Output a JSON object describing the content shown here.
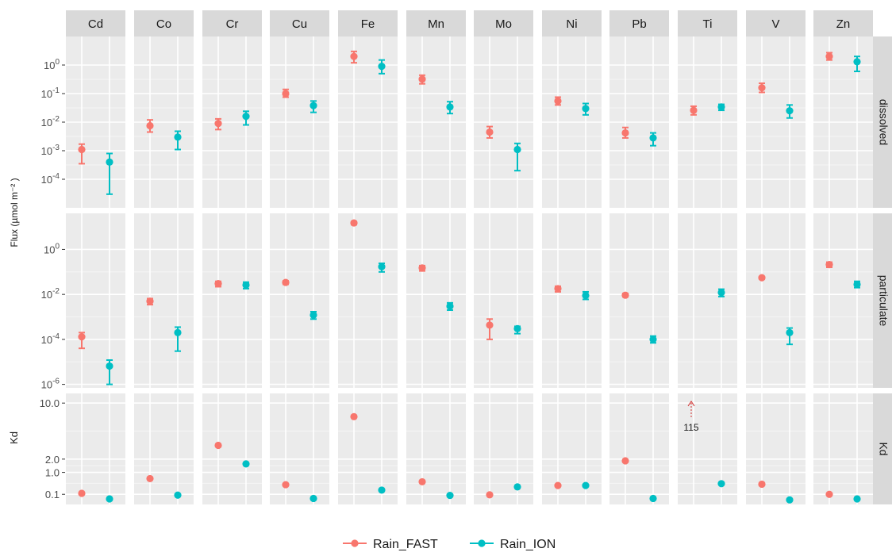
{
  "chart_data": {
    "type": "scatter",
    "xlabel": "",
    "ylabel_flux": "Flux (µmol m⁻² )",
    "ylabel_kd": "Kd",
    "elements": [
      "Cd",
      "Co",
      "Cr",
      "Cu",
      "Fe",
      "Mn",
      "Mo",
      "Ni",
      "Pb",
      "Ti",
      "V",
      "Zn"
    ],
    "legend": {
      "position": "bottom",
      "entries": [
        {
          "name": "Rain_FAST",
          "color": "#F8766D"
        },
        {
          "name": "Rain_ION",
          "color": "#00BFC4"
        }
      ]
    },
    "annotation": {
      "element": "Ti",
      "panel": "Kd",
      "text": "115",
      "color": "#d0302f"
    },
    "panels": [
      {
        "name": "dissolved",
        "scale": "log",
        "ylim": [
          1e-05,
          10
        ],
        "y_ticks": [
          {
            "v": 1,
            "base": "10",
            "exp": "0"
          },
          {
            "v": 0.1,
            "base": "10",
            "exp": "-1"
          },
          {
            "v": 0.01,
            "base": "10",
            "exp": "-2"
          },
          {
            "v": 0.001,
            "base": "10",
            "exp": "-3"
          },
          {
            "v": 0.0001,
            "base": "10",
            "exp": "-4"
          }
        ],
        "series": [
          {
            "name": "Rain_FAST",
            "values": [
              0.0011,
              0.0075,
              0.009,
              0.1,
              2.0,
              0.32,
              0.0045,
              0.055,
              0.0042,
              0.026,
              0.16,
              2.0
            ],
            "low": [
              0.00035,
              0.0045,
              0.0055,
              0.075,
              1.2,
              0.22,
              0.0028,
              0.04,
              0.0028,
              0.018,
              0.11,
              1.5
            ],
            "high": [
              0.0017,
              0.012,
              0.013,
              0.14,
              3.0,
              0.44,
              0.007,
              0.075,
              0.0065,
              0.036,
              0.23,
              2.7
            ]
          },
          {
            "name": "Rain_ION",
            "values": [
              0.0004,
              0.003,
              0.016,
              0.038,
              0.9,
              0.034,
              0.0011,
              0.03,
              0.0028,
              0.034,
              0.025,
              1.3
            ],
            "low": [
              3e-05,
              0.0011,
              0.008,
              0.022,
              0.5,
              0.02,
              0.0002,
              0.018,
              0.0015,
              0.026,
              0.014,
              0.6
            ],
            "high": [
              0.0008,
              0.0048,
              0.024,
              0.055,
              1.5,
              0.052,
              0.0018,
              0.045,
              0.0042,
              0.042,
              0.04,
              2.0
            ]
          }
        ]
      },
      {
        "name": "particulate",
        "scale": "log",
        "ylim": [
          7e-07,
          40
        ],
        "y_ticks": [
          {
            "v": 1,
            "base": "10",
            "exp": "0"
          },
          {
            "v": 0.01,
            "base": "10",
            "exp": "-2"
          },
          {
            "v": 0.0001,
            "base": "10",
            "exp": "-4"
          },
          {
            "v": 1e-06,
            "base": "10",
            "exp": "-6"
          }
        ],
        "series": [
          {
            "name": "Rain_FAST",
            "values": [
              0.00013,
              0.005,
              0.03,
              0.034,
              15,
              0.15,
              0.00043,
              0.018,
              0.0092,
              null,
              0.055,
              0.21
            ],
            "low": [
              4e-05,
              0.0035,
              0.022,
              0.028,
              12.5,
              0.11,
              0.0001,
              0.013,
              0.0078,
              null,
              0.048,
              0.16
            ],
            "high": [
              0.0002,
              0.0065,
              0.038,
              0.04,
              17.5,
              0.19,
              0.0008,
              0.023,
              0.011,
              null,
              0.062,
              0.27
            ]
          },
          {
            "name": "Rain_ION",
            "values": [
              6.5e-06,
              0.0002,
              0.026,
              0.0012,
              0.17,
              0.003,
              0.0003,
              0.009,
              0.0001,
              0.012,
              0.0002,
              0.028
            ],
            "low": [
              1e-06,
              3e-05,
              0.018,
              0.0008,
              0.1,
              0.002,
              0.00018,
              0.006,
              7e-05,
              0.008,
              6e-05,
              0.02
            ],
            "high": [
              1.2e-05,
              0.00035,
              0.035,
              0.0017,
              0.24,
              0.0042,
              0.00038,
              0.013,
              0.00014,
              0.017,
              0.00032,
              0.038
            ]
          }
        ]
      },
      {
        "name": "Kd",
        "scale": "sqrt",
        "ylim": [
          0,
          12
        ],
        "y_ticks": [
          {
            "v": 10,
            "label": "10.0"
          },
          {
            "v": 2,
            "label": "2.0"
          },
          {
            "v": 1,
            "label": "1.0"
          },
          {
            "v": 0.1,
            "label": "0.1"
          }
        ],
        "series": [
          {
            "name": "Rain_FAST",
            "values": [
              0.12,
              0.65,
              3.4,
              0.38,
              7.5,
              0.5,
              0.09,
              0.35,
              1.85,
              null,
              0.4,
              0.1
            ]
          },
          {
            "name": "Rain_ION",
            "values": [
              0.03,
              0.085,
              1.6,
              0.035,
              0.2,
              0.08,
              0.3,
              0.35,
              0.035,
              0.42,
              0.02,
              0.03
            ]
          }
        ]
      }
    ]
  }
}
